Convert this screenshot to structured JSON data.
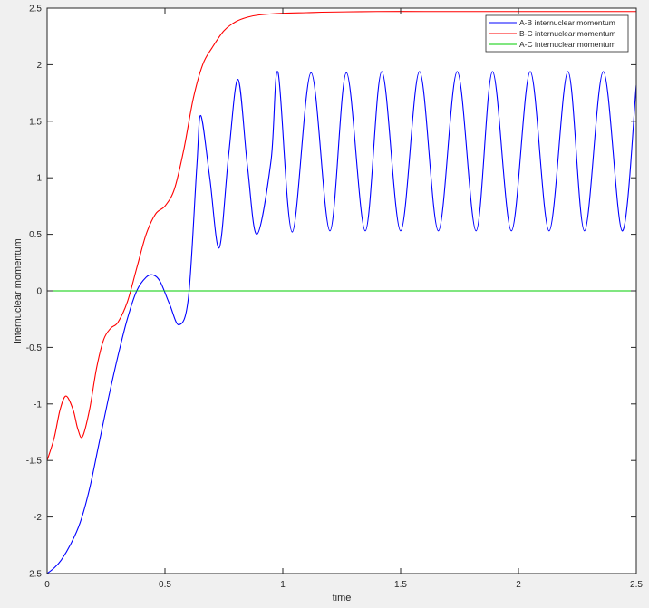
{
  "chart_data": {
    "type": "line",
    "title": "",
    "xlabel": "time",
    "ylabel": "internuclear momentum",
    "xlim": [
      0,
      2.5
    ],
    "ylim": [
      -2.5,
      2.5
    ],
    "xticks": [
      0,
      0.5,
      1,
      1.5,
      2,
      2.5
    ],
    "xtick_labels": [
      "0",
      "0.5",
      "1",
      "1.5",
      "2",
      "2.5"
    ],
    "yticks": [
      -2.5,
      -2,
      -1.5,
      -1,
      -0.5,
      0,
      0.5,
      1,
      1.5,
      2,
      2.5
    ],
    "ytick_labels": [
      "-2.5",
      "-2",
      "-1.5",
      "-1",
      "-0.5",
      "0",
      "0.5",
      "1",
      "1.5",
      "2",
      "2.5"
    ],
    "grid": false,
    "legend_position": "top-right",
    "series": [
      {
        "name": "A-B internuclear momentum",
        "color": "#0000ff",
        "x": [
          0,
          0.03,
          0.06,
          0.1,
          0.14,
          0.18,
          0.22,
          0.26,
          0.3,
          0.34,
          0.38,
          0.42,
          0.45,
          0.48,
          0.52,
          0.56,
          0.6,
          0.635,
          0.652,
          0.69,
          0.73,
          0.77,
          0.81,
          0.85,
          0.89,
          0.95,
          0.98,
          1.04,
          1.12,
          1.2,
          1.27,
          1.35,
          1.42,
          1.5,
          1.58,
          1.66,
          1.74,
          1.82,
          1.89,
          1.97,
          2.05,
          2.13,
          2.21,
          2.28,
          2.36,
          2.44,
          2.5
        ],
        "y": [
          -2.5,
          -2.45,
          -2.38,
          -2.24,
          -2.05,
          -1.75,
          -1.35,
          -0.95,
          -0.58,
          -0.25,
          0.0,
          0.12,
          0.14,
          0.08,
          -0.12,
          -0.3,
          -0.05,
          1.1,
          1.55,
          1.0,
          0.38,
          1.2,
          1.87,
          1.1,
          0.5,
          1.15,
          1.93,
          0.52,
          1.93,
          0.53,
          1.93,
          0.53,
          1.94,
          0.53,
          1.94,
          0.53,
          1.94,
          0.53,
          1.94,
          0.53,
          1.94,
          0.53,
          1.94,
          0.53,
          1.94,
          0.53,
          1.82
        ]
      },
      {
        "name": "B-C internuclear momentum",
        "color": "#ff0000",
        "x": [
          0,
          0.03,
          0.055,
          0.08,
          0.11,
          0.13,
          0.15,
          0.18,
          0.21,
          0.24,
          0.27,
          0.3,
          0.34,
          0.38,
          0.42,
          0.46,
          0.5,
          0.54,
          0.58,
          0.62,
          0.66,
          0.7,
          0.75,
          0.8,
          0.85,
          0.9,
          1.0,
          1.1,
          1.2,
          1.4,
          1.6,
          1.8,
          2.0,
          2.25,
          2.5
        ],
        "y": [
          -1.5,
          -1.3,
          -1.05,
          -0.93,
          -1.05,
          -1.22,
          -1.29,
          -1.05,
          -0.68,
          -0.43,
          -0.33,
          -0.28,
          -0.1,
          0.2,
          0.5,
          0.68,
          0.75,
          0.9,
          1.25,
          1.7,
          2.0,
          2.15,
          2.3,
          2.38,
          2.42,
          2.44,
          2.455,
          2.46,
          2.465,
          2.47,
          2.47,
          2.47,
          2.47,
          2.47,
          2.47
        ]
      },
      {
        "name": "A-C internuclear momentum",
        "color": "#00cc00",
        "x": [
          0,
          2.5
        ],
        "y": [
          0,
          0
        ]
      }
    ]
  }
}
